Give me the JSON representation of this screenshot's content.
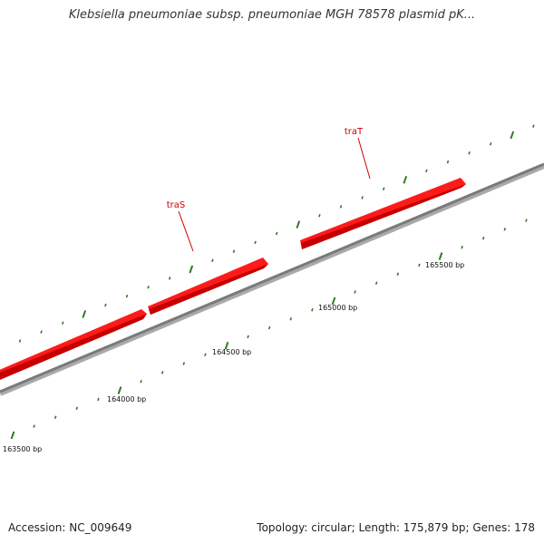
{
  "title": "Klebsiella pneumoniae subsp. pneumoniae MGH 78578 plasmid pK...",
  "colors": {
    "gene": "#ff1a1a",
    "gene_label": "#cc0000",
    "backbone": "#888888",
    "tick": "#2e7d1f"
  },
  "genes": [
    {
      "name": "traS",
      "label": "traS"
    },
    {
      "name": "traT",
      "label": "traT"
    }
  ],
  "scale_labels": [
    "163500 bp",
    "164000 bp",
    "164500 bp",
    "165000 bp",
    "165500 bp"
  ],
  "footer": {
    "accession": "Accession: NC_009649",
    "summary": "Topology: circular; Length: 175,879 bp; Genes: 178"
  }
}
